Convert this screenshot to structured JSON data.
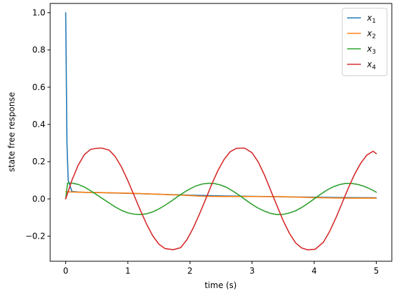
{
  "chart_data": {
    "type": "line",
    "title": "",
    "xlabel": "time (s)",
    "ylabel": "state free response",
    "xlim": [
      -0.25,
      5.25
    ],
    "ylim": [
      -0.335,
      1.05
    ],
    "x_ticks": [
      0,
      1,
      2,
      3,
      4,
      5
    ],
    "x_tick_labels": [
      "0",
      "1",
      "2",
      "3",
      "4",
      "5"
    ],
    "y_ticks": [
      -0.2,
      0.0,
      0.2,
      0.4,
      0.6,
      0.8,
      1.0
    ],
    "y_tick_labels": [
      "−0.2",
      "0.0",
      "0.2",
      "0.4",
      "0.6",
      "0.8",
      "1.0"
    ],
    "grid": false,
    "legend_position": "top-right",
    "series": [
      {
        "name": "x_1",
        "label_base": "x",
        "label_sub": "1",
        "color": "#1f77b4",
        "x": [
          0,
          0.02,
          0.04,
          0.1,
          0.2,
          0.3,
          0.5,
          1.0,
          1.5,
          2.0,
          2.5,
          3.0,
          3.5,
          4.0,
          4.5,
          5.0
        ],
        "y": [
          1.0,
          0.3,
          0.1,
          0.04,
          0.037,
          0.035,
          0.034,
          0.03,
          0.025,
          0.02,
          0.016,
          0.014,
          0.011,
          0.009,
          0.007,
          0.006
        ]
      },
      {
        "name": "x_2",
        "label_base": "x",
        "label_sub": "2",
        "color": "#ff7f0e",
        "x": [
          0,
          0.2,
          0.5,
          1.0,
          1.5,
          2.0,
          2.2,
          2.5,
          3.0,
          3.5,
          4.0,
          4.5,
          5.0
        ],
        "y": [
          0.038,
          0.036,
          0.034,
          0.031,
          0.025,
          0.018,
          0.014,
          0.013,
          0.013,
          0.012,
          0.007,
          0.004,
          0.004
        ]
      },
      {
        "name": "x_3",
        "label_base": "x",
        "label_sub": "3",
        "color": "#2ca02c",
        "x": [
          0,
          0.03,
          0.1,
          0.2,
          0.3,
          0.4,
          0.5,
          0.6,
          0.7,
          0.8,
          0.9,
          1.0,
          1.1,
          1.2,
          1.3,
          1.4,
          1.5,
          1.6,
          1.7,
          1.8,
          1.9,
          2.0,
          2.1,
          2.2,
          2.3,
          2.4,
          2.5,
          2.6,
          2.7,
          2.8,
          2.9,
          3.0,
          3.1,
          3.2,
          3.3,
          3.4,
          3.5,
          3.6,
          3.7,
          3.8,
          3.9,
          4.0,
          4.1,
          4.2,
          4.3,
          4.4,
          4.5,
          4.6,
          4.7,
          4.8,
          4.9,
          5.0
        ],
        "y": [
          0.0,
          0.085,
          0.085,
          0.078,
          0.064,
          0.044,
          0.022,
          0.0,
          -0.022,
          -0.044,
          -0.062,
          -0.075,
          -0.082,
          -0.084,
          -0.08,
          -0.07,
          -0.054,
          -0.034,
          -0.012,
          0.012,
          0.034,
          0.054,
          0.07,
          0.08,
          0.084,
          0.082,
          0.074,
          0.06,
          0.04,
          0.018,
          -0.006,
          -0.03,
          -0.05,
          -0.066,
          -0.078,
          -0.084,
          -0.083,
          -0.076,
          -0.064,
          -0.046,
          -0.024,
          0.0,
          0.024,
          0.046,
          0.064,
          0.076,
          0.083,
          0.083,
          0.078,
          0.068,
          0.054,
          0.036
        ]
      },
      {
        "name": "x_4",
        "label_base": "x",
        "label_sub": "4",
        "color": "#d62728",
        "x": [
          0,
          0.1,
          0.2,
          0.3,
          0.4,
          0.5,
          0.58,
          0.7,
          0.8,
          0.9,
          1.0,
          1.1,
          1.2,
          1.3,
          1.4,
          1.5,
          1.6,
          1.73,
          1.85,
          1.95,
          2.05,
          2.15,
          2.25,
          2.35,
          2.45,
          2.55,
          2.65,
          2.75,
          2.88,
          3.0,
          3.1,
          3.2,
          3.3,
          3.4,
          3.5,
          3.6,
          3.7,
          3.8,
          3.9,
          4.02,
          4.15,
          4.25,
          4.35,
          4.45,
          4.55,
          4.65,
          4.75,
          4.85,
          4.95,
          5.0
        ],
        "y": [
          0.0,
          0.1,
          0.18,
          0.238,
          0.266,
          0.272,
          0.273,
          0.262,
          0.226,
          0.17,
          0.098,
          0.02,
          -0.06,
          -0.134,
          -0.198,
          -0.243,
          -0.267,
          -0.273,
          -0.262,
          -0.22,
          -0.158,
          -0.084,
          -0.004,
          0.078,
          0.152,
          0.212,
          0.254,
          0.272,
          0.273,
          0.248,
          0.198,
          0.128,
          0.046,
          -0.036,
          -0.116,
          -0.184,
          -0.236,
          -0.264,
          -0.274,
          -0.27,
          -0.232,
          -0.174,
          -0.102,
          -0.022,
          0.058,
          0.132,
          0.192,
          0.236,
          0.256,
          0.243
        ]
      }
    ]
  }
}
